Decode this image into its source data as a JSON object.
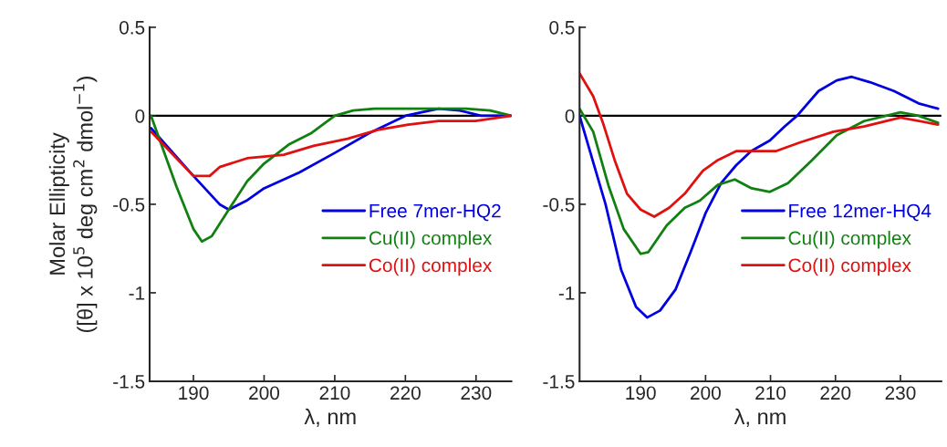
{
  "chart_data": [
    {
      "type": "line",
      "ylabel": "Molar Ellipticity\n([θ] x 10$^{5}$ deg cm$^{2}$ dmol$^{−1}$)",
      "xlabel": "λ, nm",
      "xlim": [
        183.8,
        235
      ],
      "xticks": [
        190,
        200,
        210,
        220,
        230
      ],
      "ylim": [
        -1.5,
        0.5
      ],
      "yticks": [
        0.5,
        0,
        {
          "value": -0.5,
          "label": "-0.5"
        },
        {
          "value": -1,
          "label": "-1"
        },
        {
          "value": -1.5,
          "label": "-1.5"
        }
      ],
      "ref_lines": [
        {
          "axis": "y",
          "value": 0,
          "color": "#000000"
        }
      ],
      "legend": "center right",
      "series": [
        {
          "name": "Free 7mer-HQ2",
          "color": "#0000e0",
          "x": [
            184,
            190,
            193.7,
            195,
            197.5,
            200,
            205,
            210,
            214.8,
            220,
            224.7,
            227.7,
            230.7,
            235
          ],
          "values": [
            -0.07,
            -0.34,
            -0.5,
            -0.53,
            -0.48,
            -0.41,
            -0.32,
            -0.21,
            -0.1,
            0,
            0.04,
            0.03,
            0,
            0
          ]
        },
        {
          "name": "Cu(II) complex",
          "color": "#108010",
          "x": [
            184,
            187.6,
            190,
            191.2,
            192.6,
            195,
            197.6,
            200,
            203.6,
            206.6,
            210,
            212.6,
            215.6,
            220,
            228.6,
            232,
            235
          ],
          "values": [
            0,
            -0.4,
            -0.64,
            -0.71,
            -0.68,
            -0.53,
            -0.37,
            -0.27,
            -0.16,
            -0.1,
            0,
            0.03,
            0.04,
            0.04,
            0.04,
            0.03,
            0
          ]
        },
        {
          "name": "Co(II) complex",
          "color": "#e01010",
          "x": [
            184,
            187.6,
            190,
            192.3,
            193.7,
            197.6,
            202.8,
            207,
            211.8,
            216.1,
            220.4,
            224.7,
            229.9,
            235
          ],
          "values": [
            -0.09,
            -0.24,
            -0.34,
            -0.34,
            -0.29,
            -0.24,
            -0.22,
            -0.17,
            -0.13,
            -0.08,
            -0.05,
            -0.03,
            -0.03,
            0
          ]
        }
      ]
    },
    {
      "type": "line",
      "xlabel": "λ, nm",
      "xlim": [
        180.6,
        236.3
      ],
      "xticks": [
        190,
        200,
        210,
        220,
        230
      ],
      "ylim": [
        -1.5,
        0.5
      ],
      "yticks": [
        0.5,
        0,
        {
          "value": -0.5,
          "label": "-0.5"
        },
        {
          "value": -1,
          "label": "-1"
        },
        {
          "value": -1.5,
          "label": "-1.5"
        }
      ],
      "ref_lines": [
        {
          "axis": "y",
          "value": 0,
          "color": "#000000"
        }
      ],
      "legend": "center right",
      "series": [
        {
          "name": "Free 12mer-HQ4",
          "color": "#0000e0",
          "x": [
            180.6,
            184.6,
            187,
            189.3,
            191,
            193,
            195.4,
            197.7,
            200,
            202.4,
            204.7,
            207,
            209.9,
            212.2,
            214.1,
            217.4,
            220.2,
            222.5,
            225.3,
            229,
            232.8,
            235.8
          ],
          "values": [
            0,
            -0.5,
            -0.87,
            -1.08,
            -1.14,
            -1.1,
            -0.98,
            -0.77,
            -0.55,
            -0.38,
            -0.28,
            -0.2,
            -0.14,
            -0.06,
            0,
            0.14,
            0.2,
            0.22,
            0.19,
            0.14,
            0.07,
            0.04
          ]
        },
        {
          "name": "Cu(II) complex",
          "color": "#108010",
          "x": [
            180.6,
            182.7,
            185.1,
            187.4,
            190,
            191.2,
            194,
            196.8,
            199.1,
            201.9,
            204.5,
            207.1,
            209.9,
            212.7,
            216.4,
            220.2,
            224.4,
            230,
            232.8,
            235.8
          ],
          "values": [
            0.04,
            -0.09,
            -0.4,
            -0.64,
            -0.78,
            -0.77,
            -0.62,
            -0.52,
            -0.48,
            -0.39,
            -0.36,
            -0.41,
            -0.43,
            -0.38,
            -0.25,
            -0.11,
            -0.03,
            0.02,
            0,
            -0.04
          ]
        },
        {
          "name": "Co(II) complex",
          "color": "#e01010",
          "x": [
            180.6,
            182.7,
            184.2,
            186,
            187.9,
            190,
            192.1,
            194.4,
            196.8,
            199.6,
            201.9,
            204.7,
            208,
            210.8,
            214.6,
            219.7,
            224.4,
            230,
            235.8
          ],
          "values": [
            0.24,
            0.11,
            -0.04,
            -0.25,
            -0.44,
            -0.53,
            -0.57,
            -0.52,
            -0.44,
            -0.31,
            -0.25,
            -0.2,
            -0.2,
            -0.2,
            -0.15,
            -0.09,
            -0.06,
            -0.01,
            -0.05
          ]
        }
      ]
    }
  ]
}
